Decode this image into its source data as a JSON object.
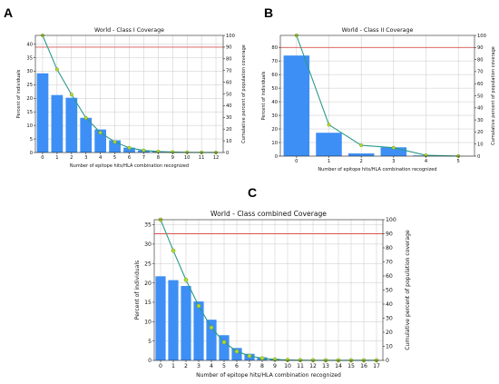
{
  "panel_labels": [
    "A",
    "B",
    "C"
  ],
  "chart_data": [
    {
      "type": "bar",
      "title": "World - Class I Coverage",
      "xlabel": "Number of epitope hits/HLA combination recognized",
      "ylabel": "Percent of individuals",
      "y2label": "Cumulative percent of population coverage",
      "categories": [
        "0",
        "1",
        "2",
        "3",
        "4",
        "5",
        "6",
        "7",
        "8",
        "9",
        "10",
        "11",
        "12"
      ],
      "ylim": [
        0,
        43.2
      ],
      "yticks": [
        0,
        5,
        10,
        15,
        20,
        25,
        30,
        35,
        40
      ],
      "y2lim": [
        0,
        100
      ],
      "y2ticks": [
        0,
        10,
        20,
        30,
        40,
        50,
        60,
        70,
        80,
        90,
        100
      ],
      "series": [
        {
          "kind": "bar",
          "values": [
            29.2,
            21.2,
            20.2,
            12.8,
            8.5,
            4.5,
            1.8,
            0.8,
            0.4,
            0.2,
            0.1,
            0.05,
            0.02
          ]
        },
        {
          "kind": "line",
          "axis": "right",
          "values": [
            100,
            71.0,
            49.5,
            29.5,
            17.0,
            9.0,
            4.0,
            1.8,
            0.8,
            0.4,
            0.2,
            0.1,
            0.05
          ]
        }
      ],
      "reference_line": {
        "axis": "right",
        "value": 90
      },
      "grid": true,
      "colors": {
        "bar": "#3d8ff5",
        "line": "#2a9a8a",
        "marker": "#b6d82c",
        "ref": "#d9534f"
      }
    },
    {
      "type": "bar",
      "title": "World - Class II Coverage",
      "xlabel": "Number of epitope hits/HLA combination recognized",
      "ylabel": "Percent of individuals",
      "y2label": "Cumulative percent of population coverage",
      "categories": [
        "0",
        "1",
        "2",
        "3",
        "4",
        "5"
      ],
      "ylim": [
        0,
        88.8
      ],
      "yticks": [
        0,
        10,
        20,
        30,
        40,
        50,
        60,
        70,
        80
      ],
      "y2lim": [
        0,
        100
      ],
      "y2ticks": [
        0,
        10,
        20,
        30,
        40,
        50,
        60,
        70,
        80,
        90,
        100
      ],
      "series": [
        {
          "kind": "bar",
          "values": [
            74.0,
            17.2,
            2.0,
            6.5,
            0.5,
            0.1
          ]
        },
        {
          "kind": "line",
          "axis": "right",
          "values": [
            100,
            26.0,
            9.0,
            7.0,
            0.7,
            0.1
          ]
        }
      ],
      "reference_line": {
        "axis": "right",
        "value": 90
      },
      "grid": true,
      "colors": {
        "bar": "#3d8ff5",
        "line": "#2a9a8a",
        "marker": "#b6d82c",
        "ref": "#d9534f"
      }
    },
    {
      "type": "bar",
      "title": "World - Class combined Coverage",
      "xlabel": "Number of epitope hits/HLA combination recognized",
      "ylabel": "Percent of individuals",
      "y2label": "Cumulative percent of population coverage",
      "categories": [
        "0",
        "1",
        "2",
        "3",
        "4",
        "5",
        "6",
        "7",
        "8",
        "9",
        "10",
        "11",
        "12",
        "13",
        "14",
        "15",
        "16",
        "17"
      ],
      "ylim": [
        0,
        36.3
      ],
      "yticks": [
        0,
        5,
        10,
        15,
        20,
        25,
        30,
        35
      ],
      "y2lim": [
        0,
        100
      ],
      "y2ticks": [
        0,
        10,
        20,
        30,
        40,
        50,
        60,
        70,
        80,
        90,
        100
      ],
      "series": [
        {
          "kind": "bar",
          "values": [
            21.7,
            20.7,
            19.2,
            15.2,
            10.5,
            6.5,
            3.2,
            1.7,
            0.8,
            0.4,
            0.2,
            0.1,
            0.05,
            0.03,
            0.02,
            0.01,
            0.01,
            0.01
          ]
        },
        {
          "kind": "line",
          "axis": "right",
          "values": [
            100,
            78.0,
            57.2,
            38.7,
            23.3,
            12.9,
            6.4,
            3.2,
            1.5,
            0.7,
            0.3,
            0.15,
            0.08,
            0.04,
            0.02,
            0.01,
            0.01,
            0.01
          ]
        }
      ],
      "reference_line": {
        "axis": "right",
        "value": 90
      },
      "grid": true,
      "colors": {
        "bar": "#3d8ff5",
        "line": "#2a9a8a",
        "marker": "#b6d82c",
        "ref": "#d9534f"
      }
    }
  ]
}
